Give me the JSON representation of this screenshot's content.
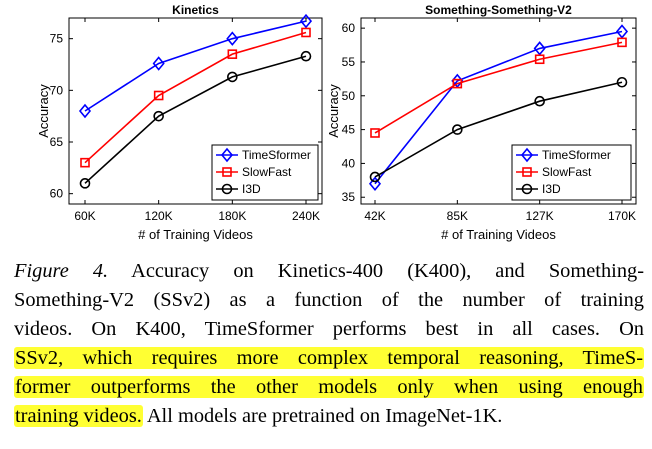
{
  "chart_data": [
    {
      "type": "line",
      "title": "Kinetics",
      "xlabel": "# of Training Videos",
      "ylabel": "Accuracy",
      "categories": [
        "60K",
        "120K",
        "180K",
        "240K"
      ],
      "ylim": [
        59,
        77
      ],
      "yticks": [
        60,
        65,
        70,
        75
      ],
      "grid": false,
      "legend": "bottom-right",
      "series": [
        {
          "name": "TimeSformer",
          "values": [
            68.0,
            72.6,
            75.0,
            76.7
          ],
          "color": "#0000ff",
          "marker": "diamond"
        },
        {
          "name": "SlowFast",
          "values": [
            63.0,
            69.5,
            73.5,
            75.6
          ],
          "color": "#ff0000",
          "marker": "square"
        },
        {
          "name": "I3D",
          "values": [
            61.0,
            67.5,
            71.3,
            73.3
          ],
          "color": "#000000",
          "marker": "circle"
        }
      ]
    },
    {
      "type": "line",
      "title": "Something-Something-V2",
      "xlabel": "# of Training Videos",
      "ylabel": "Accuracy",
      "categories": [
        "42K",
        "85K",
        "127K",
        "170K"
      ],
      "ylim": [
        34,
        61.5
      ],
      "yticks": [
        35,
        40,
        45,
        50,
        55,
        60
      ],
      "grid": false,
      "legend": "bottom-right",
      "series": [
        {
          "name": "TimeSformer",
          "values": [
            37.0,
            52.2,
            57.0,
            59.5
          ],
          "color": "#0000ff",
          "marker": "diamond"
        },
        {
          "name": "SlowFast",
          "values": [
            44.5,
            51.8,
            55.4,
            57.9
          ],
          "color": "#ff0000",
          "marker": "square"
        },
        {
          "name": "I3D",
          "values": [
            38.0,
            45.0,
            49.2,
            52.0
          ],
          "color": "#000000",
          "marker": "circle"
        }
      ]
    }
  ],
  "caption": {
    "figure_label": "Figure 4.",
    "lines": [
      " Accuracy on Kinetics-400 (K400), and Something-",
      "Something-V2 (SSv2) as a function of the number of training",
      "videos. On K400, TimeSformer performs best in all cases. On"
    ],
    "highlight_lines": [
      "SSv2, which requires more complex temporal reasoning, TimeS-",
      "former outperforms the other models only when using enough",
      "training videos."
    ],
    "tail": " All models are pretrained on ImageNet-1K."
  },
  "colors": {
    "highlight": "#ffff33",
    "timesformer": "#0000ff",
    "slowfast": "#ff0000",
    "i3d": "#000000"
  }
}
